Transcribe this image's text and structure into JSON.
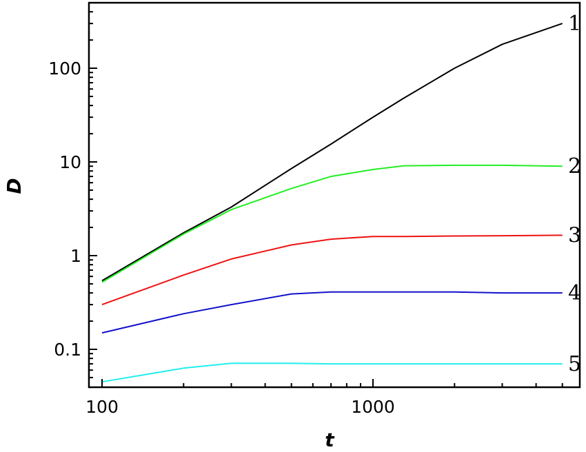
{
  "chart_data": {
    "type": "line",
    "title": "",
    "xlabel": "t",
    "ylabel": "D",
    "xscale": "log",
    "yscale": "log",
    "xlim": [
      86,
      6400
    ],
    "ylim": [
      0.038,
      520
    ],
    "grid": false,
    "legend": "inline labels at right end of each curve",
    "x_tick_labels": [
      "100",
      "1000"
    ],
    "y_tick_labels": [
      "0.1",
      "1",
      "10",
      "100"
    ],
    "x": [
      100,
      200,
      300,
      500,
      700,
      1000,
      1300,
      2000,
      3000,
      5000
    ],
    "series": [
      {
        "name": "1",
        "color": "#000000",
        "values": [
          0.54,
          1.75,
          3.3,
          8.5,
          15.5,
          30,
          48,
          100,
          180,
          300
        ]
      },
      {
        "name": "2",
        "color": "#22ee22",
        "values": [
          0.52,
          1.7,
          3.1,
          5.2,
          7.0,
          8.3,
          9.1,
          9.2,
          9.2,
          9.0
        ]
      },
      {
        "name": "3",
        "color": "#ee1111",
        "values": [
          0.3,
          0.62,
          0.92,
          1.3,
          1.5,
          1.6,
          1.6,
          1.62,
          1.63,
          1.65
        ]
      },
      {
        "name": "4",
        "color": "#1111cc",
        "values": [
          0.15,
          0.24,
          0.3,
          0.39,
          0.41,
          0.41,
          0.41,
          0.41,
          0.4,
          0.4
        ]
      },
      {
        "name": "5",
        "color": "#22eeee",
        "values": [
          0.045,
          0.063,
          0.071,
          0.071,
          0.07,
          0.07,
          0.07,
          0.07,
          0.07,
          0.07
        ]
      }
    ]
  }
}
